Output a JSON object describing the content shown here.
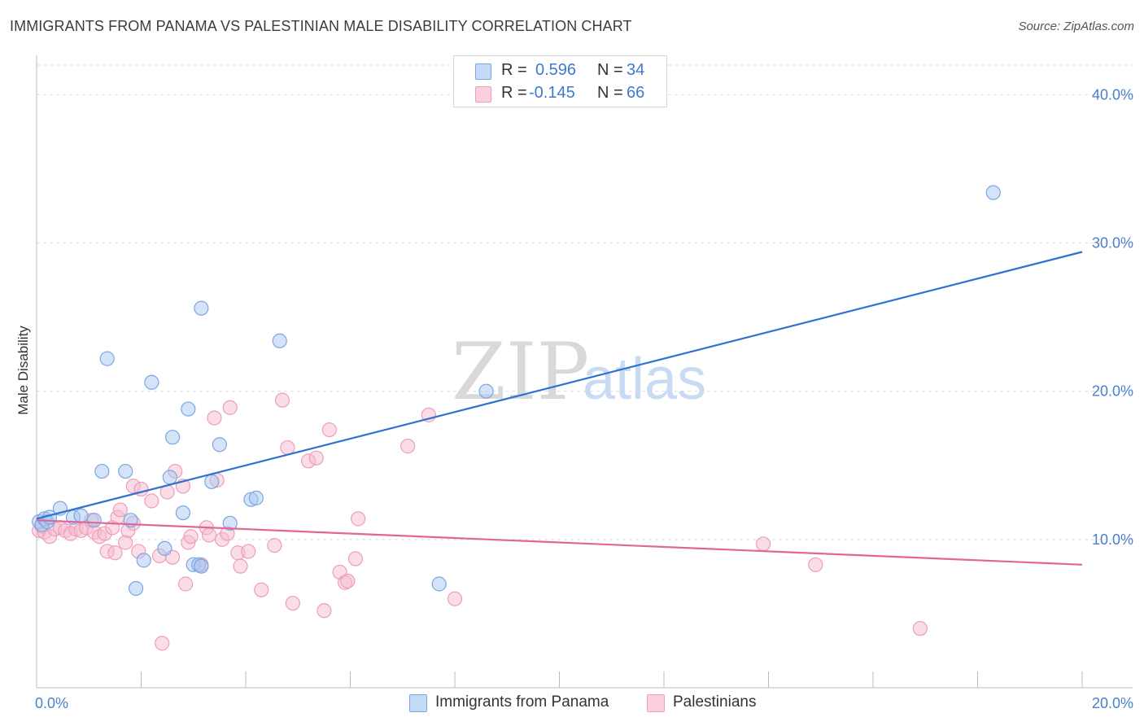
{
  "header": {
    "title": "IMMIGRANTS FROM PANAMA VS PALESTINIAN MALE DISABILITY CORRELATION CHART",
    "source": "Source: ZipAtlas.com"
  },
  "watermark": {
    "zip": "ZIP",
    "atlas": "atlas"
  },
  "legend_stats": [
    {
      "r_label": "R =",
      "r_value": "0.596",
      "n_label": "N =",
      "n_value": "34"
    },
    {
      "r_label": "R =",
      "r_value": "-0.145",
      "n_label": "N =",
      "n_value": "66"
    }
  ],
  "bottom_legend": [
    {
      "label": "Immigrants from Panama"
    },
    {
      "label": "Palestinians"
    }
  ],
  "colors": {
    "blue_fill": "#a9c8f0",
    "blue_stroke": "#7ba7e0",
    "blue_line": "#2f72cf",
    "pink_fill": "#f6bcd0",
    "pink_stroke": "#ee9dbb",
    "pink_line": "#e0659a",
    "tick_text": "#4a7fcc",
    "grid": "#dddddd"
  },
  "chart_data": {
    "type": "scatter",
    "title": "IMMIGRANTS FROM PANAMA VS PALESTINIAN MALE DISABILITY CORRELATION CHART",
    "xlabel": "",
    "ylabel": "Male Disability",
    "xlim": [
      0,
      20
    ],
    "ylim": [
      0,
      42
    ],
    "x_tick_labels": [
      "0.0%",
      "20.0%"
    ],
    "y_tick_labels": [
      "10.0%",
      "20.0%",
      "30.0%",
      "40.0%"
    ],
    "y_ticks": [
      10,
      20,
      30,
      40
    ],
    "grid": true,
    "legend_position": "top-center",
    "series": [
      {
        "name": "Immigrants from Panama",
        "r": 0.596,
        "n": 34,
        "trend": {
          "x": [
            0,
            20
          ],
          "y": [
            11.4,
            29.4
          ]
        },
        "points": [
          [
            0.05,
            11.2
          ],
          [
            0.1,
            11.0
          ],
          [
            0.15,
            11.4
          ],
          [
            0.2,
            11.2
          ],
          [
            0.25,
            11.5
          ],
          [
            0.45,
            12.1
          ],
          [
            0.7,
            11.5
          ],
          [
            0.85,
            11.6
          ],
          [
            1.1,
            11.3
          ],
          [
            1.25,
            14.6
          ],
          [
            1.35,
            22.2
          ],
          [
            1.7,
            14.6
          ],
          [
            1.8,
            11.3
          ],
          [
            1.9,
            6.7
          ],
          [
            2.05,
            8.6
          ],
          [
            2.2,
            20.6
          ],
          [
            2.45,
            9.4
          ],
          [
            2.55,
            14.2
          ],
          [
            2.6,
            16.9
          ],
          [
            2.8,
            11.8
          ],
          [
            2.9,
            18.8
          ],
          [
            3.0,
            8.3
          ],
          [
            3.1,
            8.3
          ],
          [
            3.15,
            8.2
          ],
          [
            3.15,
            25.6
          ],
          [
            3.35,
            13.9
          ],
          [
            3.5,
            16.4
          ],
          [
            3.7,
            11.1
          ],
          [
            4.1,
            12.7
          ],
          [
            4.2,
            12.8
          ],
          [
            4.65,
            23.4
          ],
          [
            7.7,
            7.0
          ],
          [
            8.6,
            20.0
          ],
          [
            18.3,
            33.4
          ]
        ]
      },
      {
        "name": "Palestinians",
        "r": -0.145,
        "n": 66,
        "trend": {
          "x": [
            0,
            20
          ],
          "y": [
            11.3,
            8.3
          ]
        },
        "points": [
          [
            0.05,
            10.6
          ],
          [
            0.1,
            10.9
          ],
          [
            0.15,
            10.5
          ],
          [
            0.25,
            10.2
          ],
          [
            0.35,
            10.7
          ],
          [
            0.45,
            10.8
          ],
          [
            0.55,
            10.6
          ],
          [
            0.65,
            10.4
          ],
          [
            0.75,
            10.7
          ],
          [
            0.85,
            10.6
          ],
          [
            0.95,
            10.8
          ],
          [
            1.05,
            11.3
          ],
          [
            1.1,
            10.5
          ],
          [
            1.2,
            10.2
          ],
          [
            1.3,
            10.4
          ],
          [
            1.35,
            9.2
          ],
          [
            1.45,
            10.8
          ],
          [
            1.5,
            9.1
          ],
          [
            1.55,
            11.5
          ],
          [
            1.6,
            12.0
          ],
          [
            1.7,
            9.8
          ],
          [
            1.75,
            10.6
          ],
          [
            1.85,
            11.1
          ],
          [
            1.85,
            13.6
          ],
          [
            1.95,
            9.2
          ],
          [
            2.0,
            13.4
          ],
          [
            2.2,
            12.6
          ],
          [
            2.35,
            8.9
          ],
          [
            2.4,
            3.0
          ],
          [
            2.5,
            13.2
          ],
          [
            2.6,
            8.8
          ],
          [
            2.65,
            14.6
          ],
          [
            2.8,
            13.6
          ],
          [
            2.85,
            7.0
          ],
          [
            2.9,
            9.8
          ],
          [
            2.95,
            10.2
          ],
          [
            3.15,
            8.3
          ],
          [
            3.25,
            10.8
          ],
          [
            3.3,
            10.3
          ],
          [
            3.4,
            18.2
          ],
          [
            3.45,
            14.0
          ],
          [
            3.55,
            10.0
          ],
          [
            3.65,
            10.4
          ],
          [
            3.7,
            18.9
          ],
          [
            3.85,
            9.1
          ],
          [
            3.9,
            8.2
          ],
          [
            4.05,
            9.2
          ],
          [
            4.3,
            6.6
          ],
          [
            4.55,
            9.6
          ],
          [
            4.7,
            19.4
          ],
          [
            4.8,
            16.2
          ],
          [
            4.9,
            5.7
          ],
          [
            5.2,
            15.3
          ],
          [
            5.35,
            15.5
          ],
          [
            5.5,
            5.2
          ],
          [
            5.6,
            17.4
          ],
          [
            5.8,
            7.8
          ],
          [
            5.9,
            7.1
          ],
          [
            5.95,
            7.2
          ],
          [
            6.1,
            8.7
          ],
          [
            6.15,
            11.4
          ],
          [
            7.1,
            16.3
          ],
          [
            7.5,
            18.4
          ],
          [
            8.0,
            6.0
          ],
          [
            13.9,
            9.7
          ],
          [
            14.9,
            8.3
          ],
          [
            16.9,
            4.0
          ]
        ]
      }
    ]
  }
}
